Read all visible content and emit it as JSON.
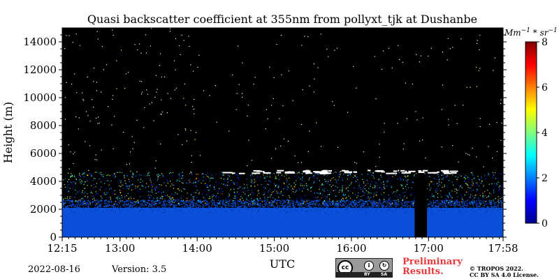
{
  "chart_data": {
    "type": "heatmap",
    "title": "Quasi backscatter coefficient at 355nm from pollyxt_tjk at Dushanbe",
    "xlabel": "UTC",
    "ylabel": "Height (m)",
    "x_tick_labels": [
      "12:15",
      "13:00",
      "14:00",
      "15:00",
      "16:00",
      "17:00",
      "17:58"
    ],
    "x_ticks_hours": [
      12.25,
      13,
      14,
      15,
      16,
      17,
      17.967
    ],
    "xlim_hours": [
      12.25,
      17.967
    ],
    "y_ticks": [
      0,
      2000,
      4000,
      6000,
      8000,
      10000,
      12000,
      14000
    ],
    "ylim": [
      0,
      15000
    ],
    "colorbar": {
      "label": "Mm^-1 * sr^-1",
      "ticks": [
        0,
        2,
        4,
        6,
        8
      ],
      "range": [
        0,
        8
      ],
      "colormap": "jet"
    },
    "profile": {
      "dense_layer_top_m": 2400,
      "aerosol_layer_top_m": 4700,
      "cloud_layer_m": [
        4600,
        4850
      ],
      "data_gap_hours": [
        16.82,
        16.98
      ]
    },
    "background_color": "#000000"
  },
  "footer": {
    "date": "2022-08-16",
    "version": "Version: 3.5",
    "preliminary_line1": "Preliminary",
    "preliminary_line2": "Results.",
    "copyright_line1": "© TROPOS 2022.",
    "copyright_line2": "CC BY SA 4.0 License.",
    "license_labels": [
      "cc",
      "BY",
      "SA"
    ]
  }
}
